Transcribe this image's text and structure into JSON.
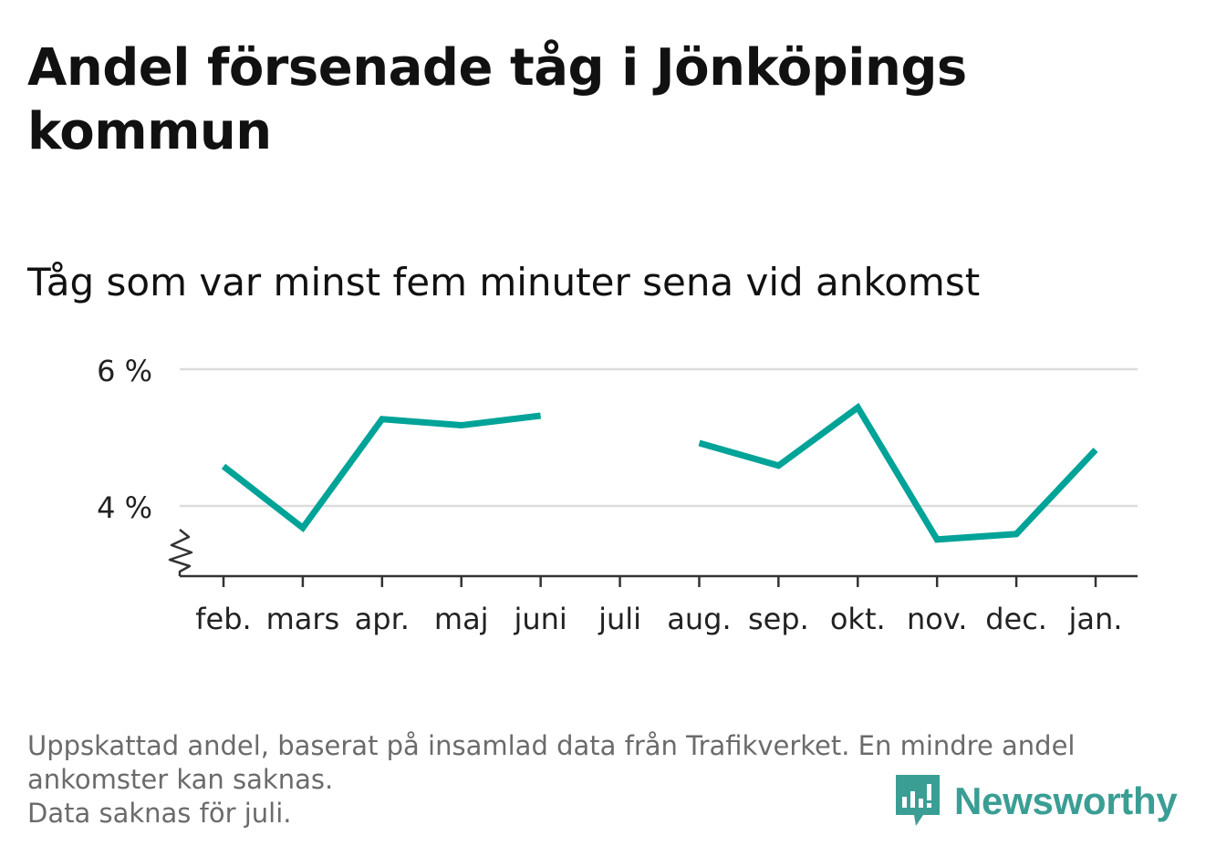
{
  "header": {
    "title": "Andel försenade tåg i Jönköpings kommun",
    "subtitle": "Tåg som var minst fem minuter sena vid ankomst"
  },
  "chart_data": {
    "type": "line",
    "categories": [
      "feb.",
      "mars",
      "apr.",
      "maj",
      "juni",
      "juli",
      "aug.",
      "sep.",
      "okt.",
      "nov.",
      "dec.",
      "jan."
    ],
    "series": [
      {
        "values": [
          4.58,
          3.68,
          5.27,
          5.18,
          5.32,
          null,
          4.92,
          4.59,
          5.44,
          3.51,
          3.59,
          4.82
        ]
      }
    ],
    "yticks": [
      4,
      6
    ],
    "ytick_labels": [
      "4 %",
      "6 %"
    ],
    "ylim": [
      3,
      6
    ],
    "axis_break": true,
    "grid": true,
    "line_color": "#00a398",
    "xlabel": "",
    "ylabel": ""
  },
  "footnote": {
    "line1": "Uppskattad andel, baserat på insamlad data från Trafikverket. En mindre andel ankomster kan saknas.",
    "line2": "Data saknas för juli."
  },
  "brand": {
    "name": "Newsworthy",
    "color": "#3a9e94"
  }
}
